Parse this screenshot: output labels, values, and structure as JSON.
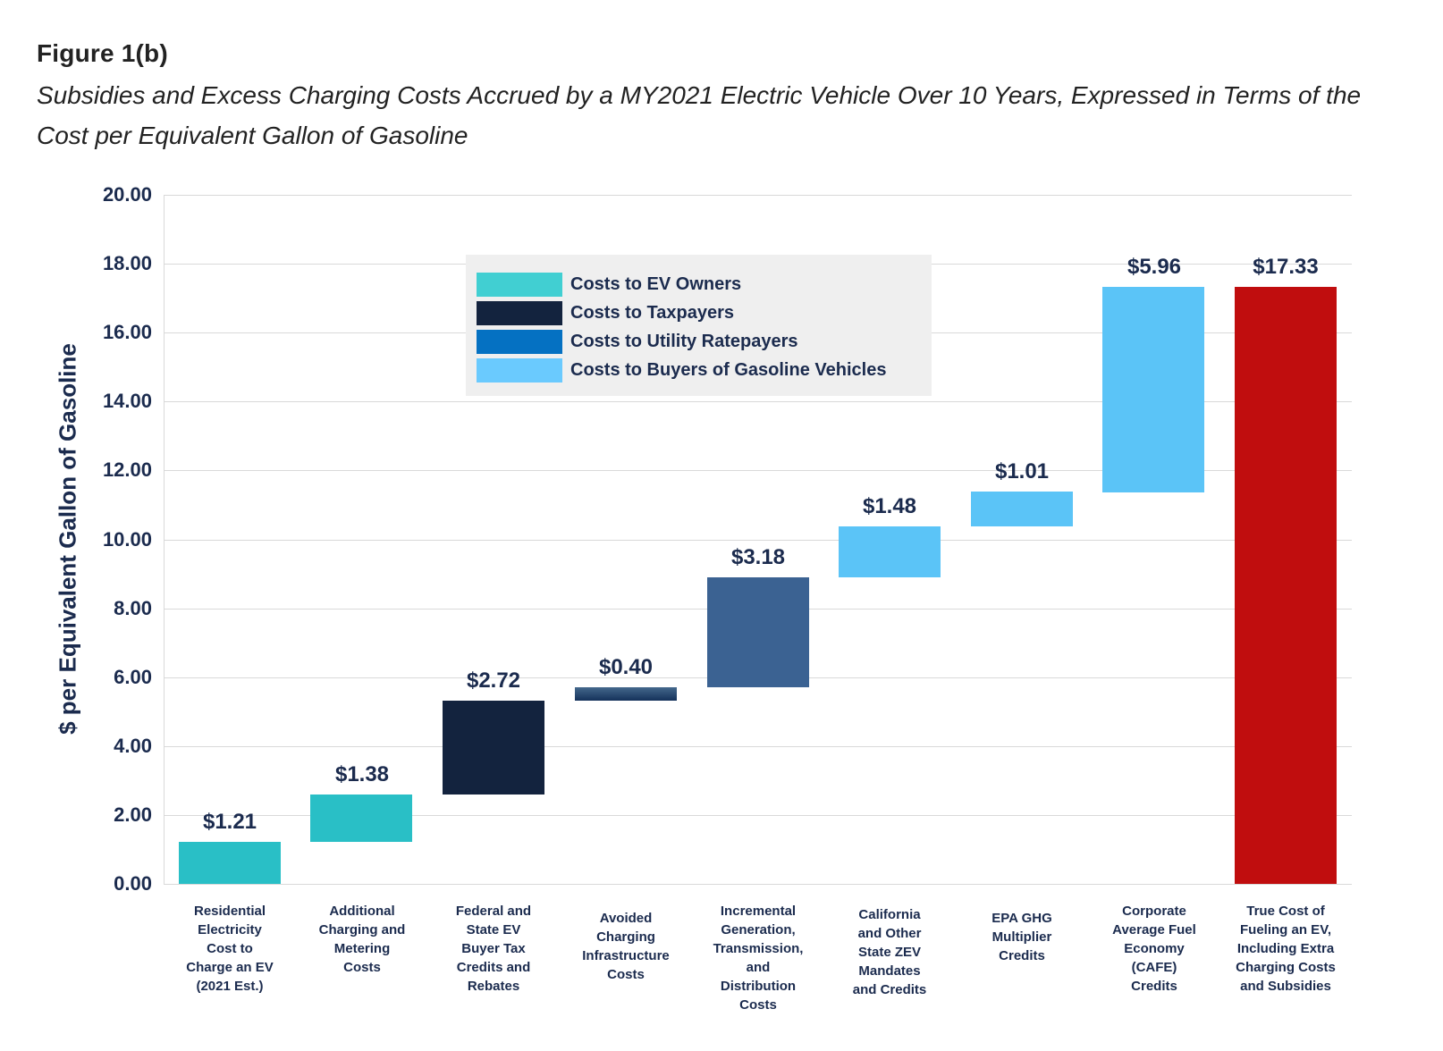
{
  "header": {
    "figure_label": "Figure 1(b)",
    "subtitle": "Subsidies and Excess Charging Costs Accrued by a MY2021 Electric Vehicle Over 10 Years, Expressed in Terms of the\nCost per Equivalent Gallon of Gasoline"
  },
  "colors": {
    "text_navy": "#1B2B4E",
    "title_text": "#222222",
    "gridline": "#D9D9D9",
    "page_background": "#FFFFFF"
  },
  "chart_data": {
    "type": "bar",
    "subtype": "waterfall",
    "title": "Subsidies and Excess Charging Costs Accrued by a MY2021 Electric Vehicle Over 10 Years, Expressed in Terms of the Cost per Equivalent Gallon of Gasoline",
    "xlabel": "",
    "ylabel": "$ per Equivalent Gallon of Gasoline",
    "ylim": [
      0,
      20
    ],
    "ytick_step": 2,
    "ytick_labels": [
      "0.00",
      "2.00",
      "4.00",
      "6.00",
      "8.00",
      "10.00",
      "12.00",
      "14.00",
      "16.00",
      "18.00",
      "20.00"
    ],
    "grid": true,
    "legend": {
      "position": "upper-center",
      "background": "#EFEFEF",
      "items": [
        {
          "label": "Costs to EV Owners",
          "color": "#41CFD2"
        },
        {
          "label": "Costs to Taxpayers",
          "color": "#13233E"
        },
        {
          "label": "Costs to Utility Ratepayers",
          "color": "#0571C2"
        },
        {
          "label": "Costs to Buyers of Gasoline Vehicles",
          "color": "#6ACAFE"
        }
      ]
    },
    "bars": [
      {
        "category": "Residential Electricity Cost to Charge an EV (2021 Est.)",
        "label_lines": "Residential\nElectricity\nCost to\nCharge an EV\n(2021 Est.)",
        "series": "Costs to EV Owners",
        "value": 1.21,
        "value_label": "$1.21",
        "start": 0,
        "end": 1.21,
        "color": "#29BFC6"
      },
      {
        "category": "Additional Charging and Metering Costs",
        "label_lines": "Additional\nCharging and\nMetering\nCosts",
        "series": "Costs to EV Owners",
        "value": 1.38,
        "value_label": "$1.38",
        "start": 1.21,
        "end": 2.59,
        "color": "#29BFC6"
      },
      {
        "category": "Federal and State EV Buyer Tax Credits and Rebates",
        "label_lines": "Federal and\nState EV\nBuyer Tax\nCredits and\nRebates",
        "series": "Costs to Taxpayers",
        "value": 2.72,
        "value_label": "$2.72",
        "start": 2.59,
        "end": 5.31,
        "color": "#13233E"
      },
      {
        "category": "Avoided Charging Infrastructure Costs",
        "label_lines": "Avoided\nCharging\nInfrastructure\nCosts",
        "series": "Costs to Utility Ratepayers",
        "value": 0.4,
        "value_label": "$0.40",
        "start": 5.31,
        "end": 5.71,
        "color": "#2C5380",
        "gradient_top": "#44688C",
        "gradient_bottom": "#14315A",
        "label_offset": 8
      },
      {
        "category": "Incremental Generation, Transmission, and Distribution Costs",
        "label_lines": "Incremental\nGeneration,\nTransmission,\nand\nDistribution\nCosts",
        "series": "Costs to Utility Ratepayers",
        "value": 3.18,
        "value_label": "$3.18",
        "start": 5.71,
        "end": 8.89,
        "color": "#3B6292"
      },
      {
        "category": "California and Other State ZEV Mandates and Credits",
        "label_lines": "California\nand Other\nState ZEV\nMandates\nand Credits",
        "series": "Costs to Buyers of Gasoline Vehicles",
        "value": 1.48,
        "value_label": "$1.48",
        "start": 8.89,
        "end": 10.37,
        "color": "#5BC4F7",
        "label_offset": 4
      },
      {
        "category": "EPA GHG Multiplier Credits",
        "label_lines": "EPA GHG\nMultiplier\nCredits",
        "series": "Costs to Buyers of Gasoline Vehicles",
        "value": 1.01,
        "value_label": "$1.01",
        "start": 10.37,
        "end": 11.38,
        "color": "#5BC4F7",
        "label_offset": 8
      },
      {
        "category": "Corporate Average Fuel Economy (CAFE) Credits",
        "label_lines": "Corporate\nAverage Fuel\nEconomy\n(CAFE)\nCredits",
        "series": "Costs to Buyers of Gasoline Vehicles",
        "value": 5.96,
        "value_label": "$5.96",
        "start": 11.38,
        "end": 17.34,
        "color": "#5BC4F7"
      },
      {
        "category": "True Cost of Fueling an EV, Including Extra Charging Costs and Subsidies",
        "label_lines": "True Cost of\nFueling an EV,\nIncluding Extra\nCharging Costs\nand Subsidies",
        "series": "Total",
        "value": 17.33,
        "value_label": "$17.33",
        "start": 0,
        "end": 17.33,
        "color": "#C00D0E",
        "is_total": true
      }
    ]
  }
}
